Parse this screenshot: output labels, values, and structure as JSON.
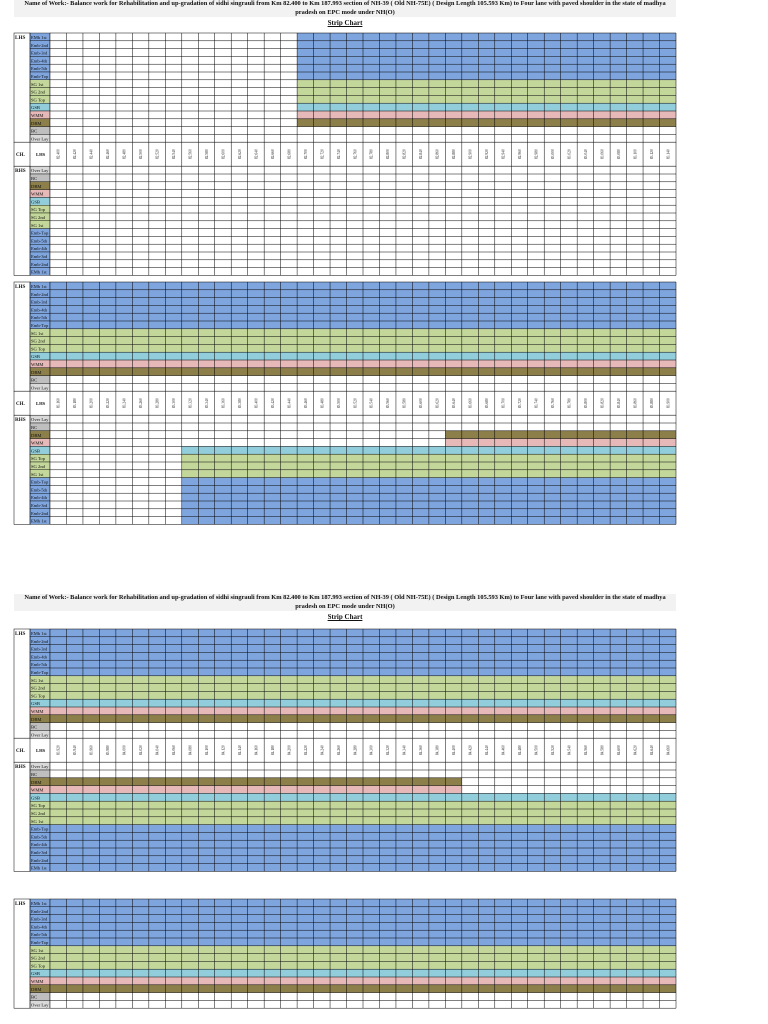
{
  "labels": {
    "lhs": "LHS",
    "rhs": "RHS",
    "ch": "CH."
  },
  "layers": [
    {
      "name": "EMb 1st",
      "color": "#7fa5df"
    },
    {
      "name": "Emb-2nd",
      "color": "#7fa5df"
    },
    {
      "name": "Emb-3rd",
      "color": "#7fa5df"
    },
    {
      "name": "Emb-4th",
      "color": "#7fa5df"
    },
    {
      "name": "Emb-5th",
      "color": "#7fa5df"
    },
    {
      "name": "Emb-Top",
      "color": "#7fa5df"
    },
    {
      "name": "SG 1st",
      "color": "#c4d79b"
    },
    {
      "name": "SG 2nd",
      "color": "#c4d79b"
    },
    {
      "name": "SG Top",
      "color": "#c4d79b"
    },
    {
      "name": "GSB",
      "color": "#92cddc"
    },
    {
      "name": "WMM",
      "color": "#e6b8b7"
    },
    {
      "name": "DBM",
      "color": "#8c7f4a"
    },
    {
      "name": "BC",
      "color": "#bfbfbf"
    },
    {
      "name": "Over Lay",
      "color": "#d9d9d9"
    }
  ],
  "pages": [
    {
      "title": "Name of Work:- Balance work for Rehabilitation and up-gradation of sidhi singrauli from Km 82.400 to Km 187.993 section of NH-39 ( Old NH-75E) ( Design Length 105.593 Km) to Four lane with paved shoulder in the state of madhya pradesh on EPC mode under NH(O)",
      "subtitle": "Strip Chart",
      "blocks": [
        {
          "chainages": [
            "82.400",
            "82.420",
            "82.440",
            "82.460",
            "82.480",
            "82.500",
            "82.520",
            "82.540",
            "82.560",
            "82.580",
            "82.600",
            "82.620",
            "82.640",
            "82.660",
            "82.680",
            "82.700",
            "82.720",
            "82.740",
            "82.760",
            "82.780",
            "82.800",
            "82.820",
            "82.840",
            "82.860",
            "82.880",
            "82.900",
            "82.920",
            "82.940",
            "82.960",
            "82.980",
            "83.000",
            "83.020",
            "83.040",
            "83.060",
            "83.080",
            "83.100",
            "83.120",
            "83.140"
          ],
          "lhs": [
            {
              "from": "82.700",
              "to": "83.140"
            },
            {
              "from": "82.700",
              "to": "83.140"
            },
            {
              "from": "82.700",
              "to": "83.140"
            },
            {
              "from": "82.700",
              "to": "83.140"
            },
            {
              "from": "82.700",
              "to": "83.140"
            },
            {
              "from": "82.700",
              "to": "83.140"
            },
            {
              "from": "82.700",
              "to": "83.140"
            },
            {
              "from": "82.700",
              "to": "83.140"
            },
            {
              "from": "82.700",
              "to": "83.140"
            },
            {
              "from": "82.700",
              "to": "83.140"
            },
            {
              "from": "82.700",
              "to": "83.140"
            },
            {
              "from": "82.700",
              "to": "83.140"
            },
            null,
            null
          ],
          "rhs": [
            null,
            null,
            null,
            null,
            null,
            null,
            null,
            null,
            null,
            null,
            null,
            null,
            null,
            null
          ]
        },
        {
          "chainages": [
            "83.160",
            "83.180",
            "83.200",
            "83.220",
            "83.240",
            "83.260",
            "83.280",
            "83.300",
            "83.320",
            "83.340",
            "83.360",
            "83.380",
            "83.400",
            "83.420",
            "83.440",
            "83.460",
            "83.480",
            "83.500",
            "83.520",
            "83.540",
            "83.560",
            "83.580",
            "83.600",
            "83.620",
            "83.640",
            "83.660",
            "83.680",
            "83.700",
            "83.720",
            "83.740",
            "83.760",
            "83.780",
            "83.800",
            "83.820",
            "83.840",
            "83.860",
            "83.880",
            "83.900"
          ],
          "lhs": [
            {
              "from": "83.160",
              "to": "83.900"
            },
            {
              "from": "83.160",
              "to": "83.900"
            },
            {
              "from": "83.160",
              "to": "83.900"
            },
            {
              "from": "83.160",
              "to": "83.900"
            },
            {
              "from": "83.160",
              "to": "83.900"
            },
            {
              "from": "83.160",
              "to": "83.900"
            },
            {
              "from": "83.160",
              "to": "83.900"
            },
            {
              "from": "83.160",
              "to": "83.900"
            },
            {
              "from": "83.160",
              "to": "83.900"
            },
            {
              "from": "83.160",
              "to": "83.900"
            },
            {
              "from": "83.160",
              "to": "83.900"
            },
            {
              "from": "83.160",
              "to": "83.900"
            },
            null,
            null
          ],
          "rhs": [
            {
              "from": "83.320",
              "to": "83.900"
            },
            {
              "from": "83.320",
              "to": "83.900"
            },
            {
              "from": "83.320",
              "to": "83.900"
            },
            {
              "from": "83.320",
              "to": "83.900"
            },
            {
              "from": "83.320",
              "to": "83.900"
            },
            {
              "from": "83.320",
              "to": "83.900"
            },
            {
              "from": "83.320",
              "to": "83.900"
            },
            {
              "from": "83.320",
              "to": "83.900"
            },
            {
              "from": "83.320",
              "to": "83.900"
            },
            {
              "from": "83.320",
              "to": "83.900"
            },
            {
              "from": "83.640",
              "to": "83.900"
            },
            {
              "from": "83.640",
              "to": "83.900"
            },
            null,
            null
          ]
        }
      ]
    },
    {
      "title": "Name of Work:- Balance work for Rehabilitation and up-gradation of sidhi singrauli from Km 82.400 to Km 187.993 section of NH-39 ( Old NH-75E) ( Design Length 105.593 Km) to Four lane with paved shoulder in the state of madhya pradesh on EPC mode under NH(O)",
      "subtitle": "Strip Chart",
      "blocks": [
        {
          "chainages": [
            "83.920",
            "83.940",
            "83.960",
            "83.980",
            "84.000",
            "84.020",
            "84.040",
            "84.060",
            "84.080",
            "84.100",
            "84.120",
            "84.140",
            "84.160",
            "84.180",
            "84.200",
            "84.220",
            "84.240",
            "84.260",
            "84.280",
            "84.300",
            "84.320",
            "84.340",
            "84.360",
            "84.380",
            "84.400",
            "84.420",
            "84.440",
            "84.460",
            "84.480",
            "84.500",
            "84.520",
            "84.540",
            "84.560",
            "84.580",
            "84.600",
            "84.620",
            "84.640",
            "84.660"
          ],
          "lhs": [
            {
              "from": "83.920",
              "to": "84.660"
            },
            {
              "from": "83.920",
              "to": "84.660"
            },
            {
              "from": "83.920",
              "to": "84.660"
            },
            {
              "from": "83.920",
              "to": "84.660"
            },
            {
              "from": "83.920",
              "to": "84.660"
            },
            {
              "from": "83.920",
              "to": "84.660"
            },
            {
              "from": "83.920",
              "to": "84.660"
            },
            {
              "from": "83.920",
              "to": "84.660"
            },
            {
              "from": "83.920",
              "to": "84.660"
            },
            {
              "from": "83.920",
              "to": "84.660"
            },
            {
              "from": "83.920",
              "to": "84.660"
            },
            {
              "from": "83.920",
              "to": "84.660"
            },
            null,
            null
          ],
          "rhs": [
            {
              "from": "83.920",
              "to": "84.660"
            },
            {
              "from": "83.920",
              "to": "84.660"
            },
            {
              "from": "83.920",
              "to": "84.660"
            },
            {
              "from": "83.920",
              "to": "84.660"
            },
            {
              "from": "83.920",
              "to": "84.660"
            },
            {
              "from": "83.920",
              "to": "84.660"
            },
            {
              "from": "83.920",
              "to": "84.660"
            },
            {
              "from": "83.920",
              "to": "84.660"
            },
            {
              "from": "83.920",
              "to": "84.660"
            },
            {
              "from": "83.920",
              "to": "84.660"
            },
            {
              "from": "83.920",
              "to": "84.400"
            },
            {
              "from": "83.920",
              "to": "84.400"
            },
            null,
            null
          ]
        },
        {
          "lhs": [
            {
              "from": 0,
              "to": 37
            },
            {
              "from": 0,
              "to": 37
            },
            {
              "from": 0,
              "to": 37
            },
            {
              "from": 0,
              "to": 37
            },
            {
              "from": 0,
              "to": 37
            },
            {
              "from": 0,
              "to": 37
            },
            {
              "from": 0,
              "to": 37
            },
            {
              "from": 0,
              "to": 37
            },
            {
              "from": 0,
              "to": 37
            },
            {
              "from": 0,
              "to": 37
            },
            {
              "from": 0,
              "to": 37
            },
            {
              "from": 0,
              "to": 37
            },
            null,
            null
          ]
        }
      ]
    }
  ]
}
